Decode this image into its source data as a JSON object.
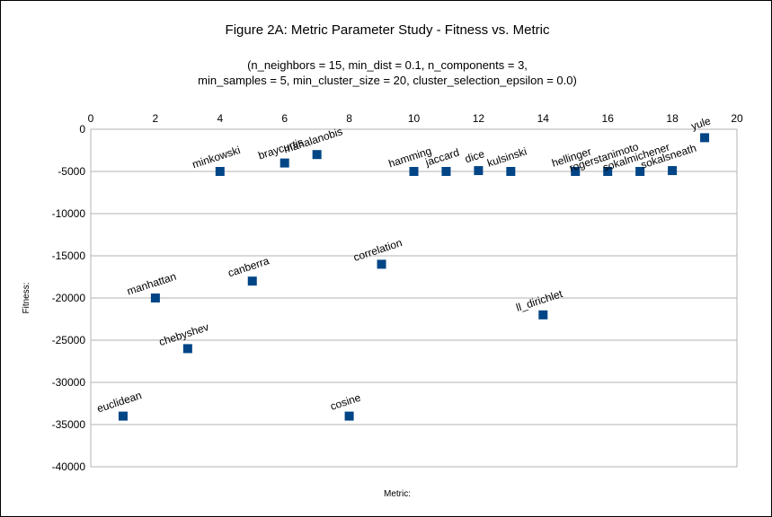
{
  "chart_data": {
    "type": "scatter",
    "title": "Figure 2A: Metric Parameter Study - Fitness vs. Metric",
    "subtitle_lines": [
      "(n_neighbors = 15, min_dist = 0.1, n_components = 3,",
      "min_samples = 5, min_cluster_size = 20, cluster_selection_epsilon = 0.0)"
    ],
    "xlabel": "Metric:",
    "ylabel": "Fitness:",
    "xlim": [
      0,
      20
    ],
    "ylim": [
      -40000,
      0
    ],
    "x_ticks": [
      0,
      2,
      4,
      6,
      8,
      10,
      12,
      14,
      16,
      18,
      20
    ],
    "y_ticks": [
      0,
      -5000,
      -10000,
      -15000,
      -20000,
      -25000,
      -30000,
      -35000,
      -40000
    ],
    "x_axis_position": "top",
    "grid": "horizontal",
    "marker": "square",
    "marker_color": "#004586",
    "points": [
      {
        "x": 1,
        "y": -34000,
        "label": "euclidean"
      },
      {
        "x": 2,
        "y": -20000,
        "label": "manhattan"
      },
      {
        "x": 3,
        "y": -26000,
        "label": "chebyshev"
      },
      {
        "x": 4,
        "y": -5000,
        "label": "minkowski"
      },
      {
        "x": 5,
        "y": -18000,
        "label": "canberra"
      },
      {
        "x": 6,
        "y": -4000,
        "label": "braycurtis"
      },
      {
        "x": 7,
        "y": -3000,
        "label": "mahalanobis"
      },
      {
        "x": 8,
        "y": -34000,
        "label": "cosine"
      },
      {
        "x": 9,
        "y": -16000,
        "label": "correlation"
      },
      {
        "x": 10,
        "y": -5000,
        "label": "hamming"
      },
      {
        "x": 11,
        "y": -5000,
        "label": "jaccard"
      },
      {
        "x": 12,
        "y": -4900,
        "label": "dice"
      },
      {
        "x": 13,
        "y": -5000,
        "label": "kulsinski"
      },
      {
        "x": 14,
        "y": -22000,
        "label": "ll_dirichlet"
      },
      {
        "x": 15,
        "y": -5000,
        "label": "hellinger"
      },
      {
        "x": 16,
        "y": -5000,
        "label": "rogerstanimoto"
      },
      {
        "x": 17,
        "y": -5000,
        "label": "sokalmichener"
      },
      {
        "x": 18,
        "y": -4900,
        "label": "sokalsneath"
      },
      {
        "x": 19,
        "y": -1000,
        "label": "yule"
      }
    ]
  }
}
